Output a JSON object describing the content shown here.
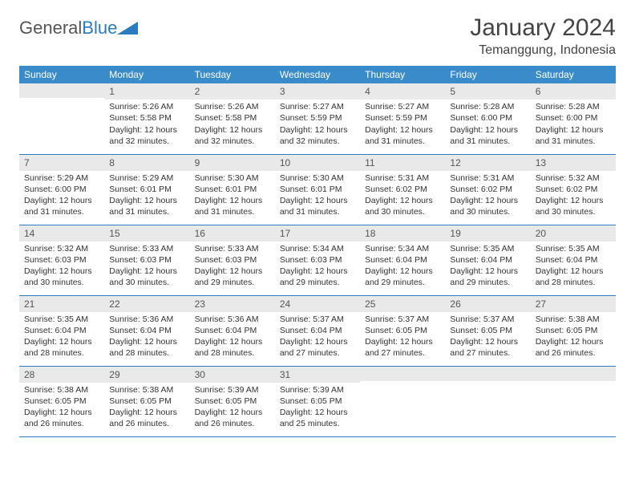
{
  "logo": {
    "text_general": "General",
    "text_blue": "Blue"
  },
  "header": {
    "month_title": "January 2024",
    "location": "Temanggung, Indonesia"
  },
  "colors": {
    "header_bg": "#3a8bc9",
    "header_text": "#ffffff",
    "daynum_bg": "#e9e9e9",
    "row_border": "#2b7bbf",
    "body_text": "#333333",
    "logo_accent": "#2b7bbf"
  },
  "weekdays": [
    "Sunday",
    "Monday",
    "Tuesday",
    "Wednesday",
    "Thursday",
    "Friday",
    "Saturday"
  ],
  "weeks": [
    [
      {
        "n": "",
        "sr": "",
        "ss": "",
        "dl": ""
      },
      {
        "n": "1",
        "sr": "Sunrise: 5:26 AM",
        "ss": "Sunset: 5:58 PM",
        "dl": "Daylight: 12 hours and 32 minutes."
      },
      {
        "n": "2",
        "sr": "Sunrise: 5:26 AM",
        "ss": "Sunset: 5:58 PM",
        "dl": "Daylight: 12 hours and 32 minutes."
      },
      {
        "n": "3",
        "sr": "Sunrise: 5:27 AM",
        "ss": "Sunset: 5:59 PM",
        "dl": "Daylight: 12 hours and 32 minutes."
      },
      {
        "n": "4",
        "sr": "Sunrise: 5:27 AM",
        "ss": "Sunset: 5:59 PM",
        "dl": "Daylight: 12 hours and 31 minutes."
      },
      {
        "n": "5",
        "sr": "Sunrise: 5:28 AM",
        "ss": "Sunset: 6:00 PM",
        "dl": "Daylight: 12 hours and 31 minutes."
      },
      {
        "n": "6",
        "sr": "Sunrise: 5:28 AM",
        "ss": "Sunset: 6:00 PM",
        "dl": "Daylight: 12 hours and 31 minutes."
      }
    ],
    [
      {
        "n": "7",
        "sr": "Sunrise: 5:29 AM",
        "ss": "Sunset: 6:00 PM",
        "dl": "Daylight: 12 hours and 31 minutes."
      },
      {
        "n": "8",
        "sr": "Sunrise: 5:29 AM",
        "ss": "Sunset: 6:01 PM",
        "dl": "Daylight: 12 hours and 31 minutes."
      },
      {
        "n": "9",
        "sr": "Sunrise: 5:30 AM",
        "ss": "Sunset: 6:01 PM",
        "dl": "Daylight: 12 hours and 31 minutes."
      },
      {
        "n": "10",
        "sr": "Sunrise: 5:30 AM",
        "ss": "Sunset: 6:01 PM",
        "dl": "Daylight: 12 hours and 31 minutes."
      },
      {
        "n": "11",
        "sr": "Sunrise: 5:31 AM",
        "ss": "Sunset: 6:02 PM",
        "dl": "Daylight: 12 hours and 30 minutes."
      },
      {
        "n": "12",
        "sr": "Sunrise: 5:31 AM",
        "ss": "Sunset: 6:02 PM",
        "dl": "Daylight: 12 hours and 30 minutes."
      },
      {
        "n": "13",
        "sr": "Sunrise: 5:32 AM",
        "ss": "Sunset: 6:02 PM",
        "dl": "Daylight: 12 hours and 30 minutes."
      }
    ],
    [
      {
        "n": "14",
        "sr": "Sunrise: 5:32 AM",
        "ss": "Sunset: 6:03 PM",
        "dl": "Daylight: 12 hours and 30 minutes."
      },
      {
        "n": "15",
        "sr": "Sunrise: 5:33 AM",
        "ss": "Sunset: 6:03 PM",
        "dl": "Daylight: 12 hours and 30 minutes."
      },
      {
        "n": "16",
        "sr": "Sunrise: 5:33 AM",
        "ss": "Sunset: 6:03 PM",
        "dl": "Daylight: 12 hours and 29 minutes."
      },
      {
        "n": "17",
        "sr": "Sunrise: 5:34 AM",
        "ss": "Sunset: 6:03 PM",
        "dl": "Daylight: 12 hours and 29 minutes."
      },
      {
        "n": "18",
        "sr": "Sunrise: 5:34 AM",
        "ss": "Sunset: 6:04 PM",
        "dl": "Daylight: 12 hours and 29 minutes."
      },
      {
        "n": "19",
        "sr": "Sunrise: 5:35 AM",
        "ss": "Sunset: 6:04 PM",
        "dl": "Daylight: 12 hours and 29 minutes."
      },
      {
        "n": "20",
        "sr": "Sunrise: 5:35 AM",
        "ss": "Sunset: 6:04 PM",
        "dl": "Daylight: 12 hours and 28 minutes."
      }
    ],
    [
      {
        "n": "21",
        "sr": "Sunrise: 5:35 AM",
        "ss": "Sunset: 6:04 PM",
        "dl": "Daylight: 12 hours and 28 minutes."
      },
      {
        "n": "22",
        "sr": "Sunrise: 5:36 AM",
        "ss": "Sunset: 6:04 PM",
        "dl": "Daylight: 12 hours and 28 minutes."
      },
      {
        "n": "23",
        "sr": "Sunrise: 5:36 AM",
        "ss": "Sunset: 6:04 PM",
        "dl": "Daylight: 12 hours and 28 minutes."
      },
      {
        "n": "24",
        "sr": "Sunrise: 5:37 AM",
        "ss": "Sunset: 6:04 PM",
        "dl": "Daylight: 12 hours and 27 minutes."
      },
      {
        "n": "25",
        "sr": "Sunrise: 5:37 AM",
        "ss": "Sunset: 6:05 PM",
        "dl": "Daylight: 12 hours and 27 minutes."
      },
      {
        "n": "26",
        "sr": "Sunrise: 5:37 AM",
        "ss": "Sunset: 6:05 PM",
        "dl": "Daylight: 12 hours and 27 minutes."
      },
      {
        "n": "27",
        "sr": "Sunrise: 5:38 AM",
        "ss": "Sunset: 6:05 PM",
        "dl": "Daylight: 12 hours and 26 minutes."
      }
    ],
    [
      {
        "n": "28",
        "sr": "Sunrise: 5:38 AM",
        "ss": "Sunset: 6:05 PM",
        "dl": "Daylight: 12 hours and 26 minutes."
      },
      {
        "n": "29",
        "sr": "Sunrise: 5:38 AM",
        "ss": "Sunset: 6:05 PM",
        "dl": "Daylight: 12 hours and 26 minutes."
      },
      {
        "n": "30",
        "sr": "Sunrise: 5:39 AM",
        "ss": "Sunset: 6:05 PM",
        "dl": "Daylight: 12 hours and 26 minutes."
      },
      {
        "n": "31",
        "sr": "Sunrise: 5:39 AM",
        "ss": "Sunset: 6:05 PM",
        "dl": "Daylight: 12 hours and 25 minutes."
      },
      {
        "n": "",
        "sr": "",
        "ss": "",
        "dl": ""
      },
      {
        "n": "",
        "sr": "",
        "ss": "",
        "dl": ""
      },
      {
        "n": "",
        "sr": "",
        "ss": "",
        "dl": ""
      }
    ]
  ]
}
